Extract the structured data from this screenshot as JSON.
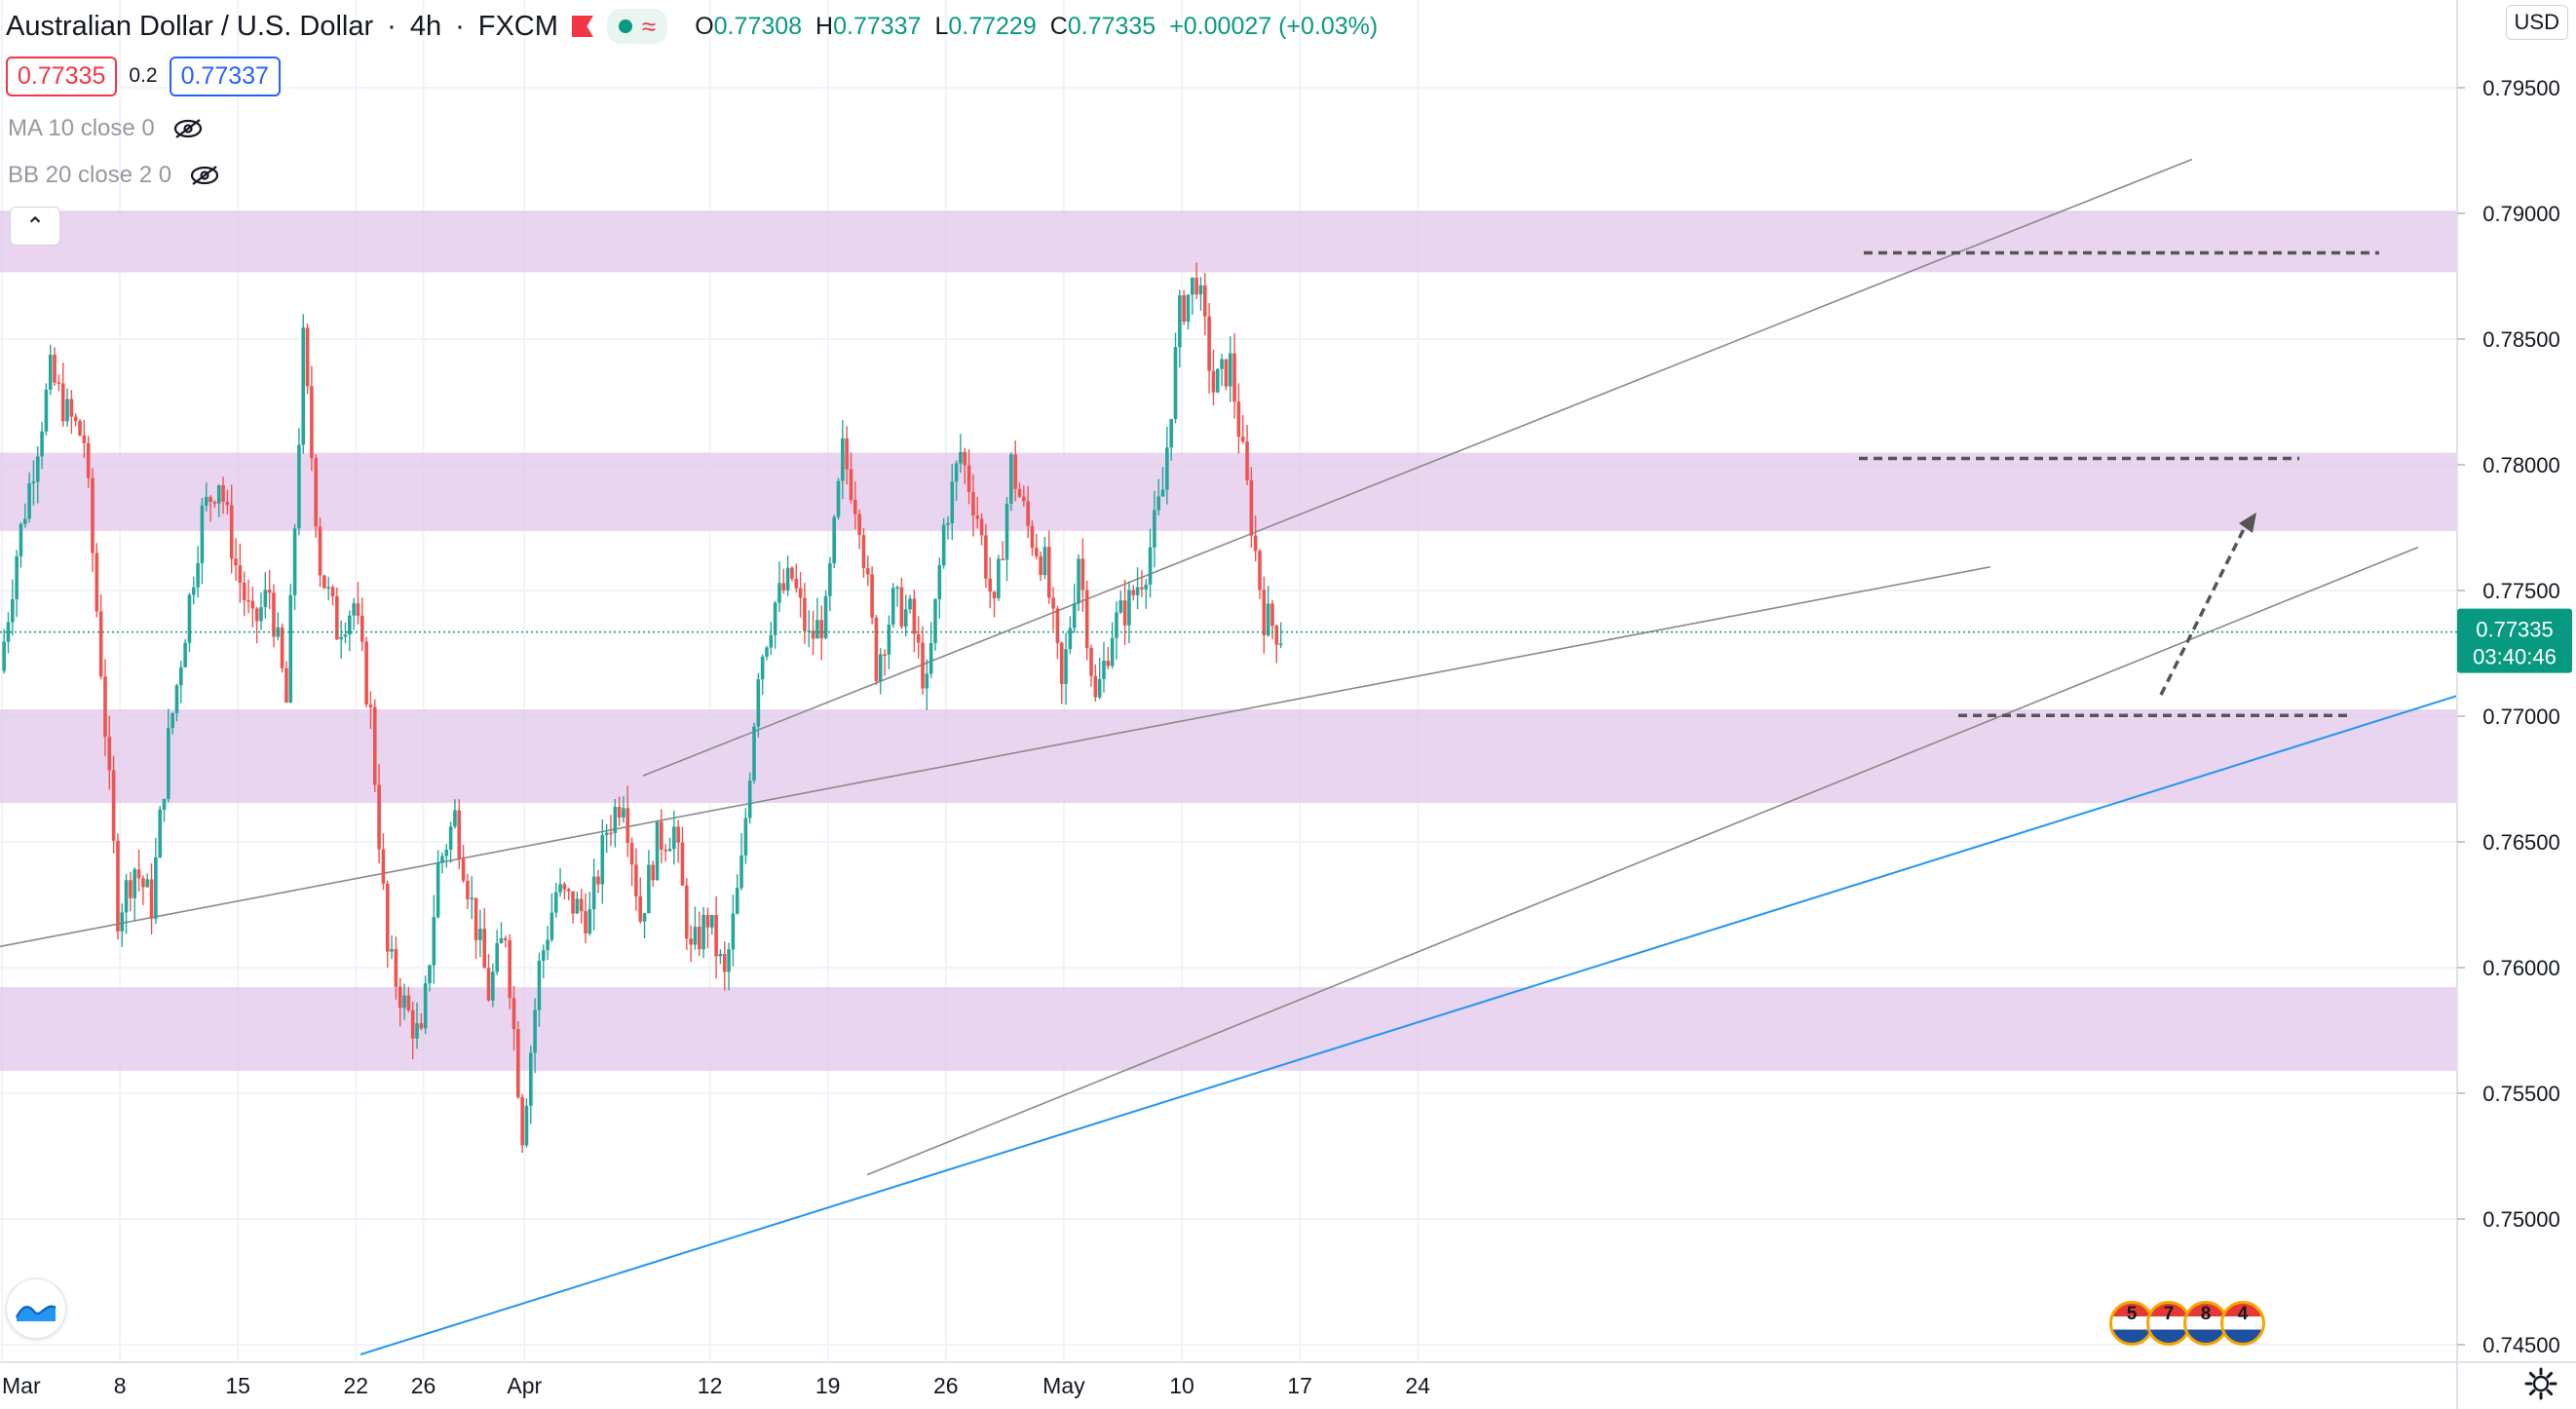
{
  "header": {
    "symbol": "Australian Dollar / U.S. Dollar",
    "interval": "4h",
    "exchange": "FXCM",
    "ohlc": {
      "open_label": "O",
      "open": "0.77308",
      "high_label": "H",
      "high": "0.77337",
      "low_label": "L",
      "low": "0.77229",
      "close_label": "C",
      "close": "0.77335",
      "change": "+0.00027 (+0.03%)"
    }
  },
  "trade": {
    "sell": "0.77335",
    "spread": "0.2",
    "buy": "0.77337"
  },
  "indicators": [
    {
      "label": "MA 10 close 0"
    },
    {
      "label": "BB 20 close 2 0"
    }
  ],
  "currency_button": "USD",
  "last_price": {
    "value": "0.77335",
    "countdown": "03:40:46"
  },
  "events": [
    "5",
    "7",
    "8",
    "4"
  ],
  "colors": {
    "up": "#26a69a",
    "down": "#ef5350",
    "zone": "#e1c7ea",
    "trendline": "#8a8a8a",
    "blue_trend": "#2196f3",
    "last_price": "#089981"
  },
  "chart_data": {
    "type": "candlestick",
    "title": "Australian Dollar / U.S. Dollar",
    "interval": "4h",
    "x_axis_ticks": [
      "Mar",
      "8",
      "15",
      "22",
      "26",
      "Apr",
      "12",
      "19",
      "26",
      "May",
      "10",
      "17",
      "24"
    ],
    "y_axis_ticks": [
      "0.79500",
      "0.79000",
      "0.78500",
      "0.78000",
      "0.77500",
      "0.77000",
      "0.76500",
      "0.76000",
      "0.75500",
      "0.75000",
      "0.74500"
    ],
    "y_range": [
      0.7445,
      0.7975
    ],
    "horizontal_zones": [
      {
        "from": 0.78766,
        "to": 0.79011
      },
      {
        "from": 0.77737,
        "to": 0.78048
      },
      {
        "from": 0.76655,
        "to": 0.77027
      },
      {
        "from": 0.7559,
        "to": 0.75922
      }
    ],
    "key_levels": [
      0.78843,
      0.78025,
      0.77003
    ],
    "last_price": 0.77335,
    "swing_path": [
      {
        "date": "Mar 1",
        "price": 0.7718
      },
      {
        "date": "Mar 2",
        "price": 0.7765
      },
      {
        "date": "Mar 4",
        "price": 0.7836
      },
      {
        "date": "Mar 5",
        "price": 0.782
      },
      {
        "date": "Mar 6",
        "price": 0.781
      },
      {
        "date": "Mar 7",
        "price": 0.772
      },
      {
        "date": "Mar 8",
        "price": 0.7622
      },
      {
        "date": "Mar 9",
        "price": 0.764
      },
      {
        "date": "Mar 10",
        "price": 0.7625
      },
      {
        "date": "Mar 11",
        "price": 0.769
      },
      {
        "date": "Mar 13",
        "price": 0.778
      },
      {
        "date": "Mar 14",
        "price": 0.7795
      },
      {
        "date": "Mar 15",
        "price": 0.776
      },
      {
        "date": "Mar 16",
        "price": 0.7735
      },
      {
        "date": "Mar 17",
        "price": 0.775
      },
      {
        "date": "Mar 18",
        "price": 0.7705
      },
      {
        "date": "Mar 19",
        "price": 0.7848
      },
      {
        "date": "Mar 20",
        "price": 0.776
      },
      {
        "date": "Mar 21",
        "price": 0.7735
      },
      {
        "date": "Mar 22",
        "price": 0.7745
      },
      {
        "date": "Mar 23",
        "price": 0.77
      },
      {
        "date": "Mar 24",
        "price": 0.7605
      },
      {
        "date": "Mar 25",
        "price": 0.7585
      },
      {
        "date": "Mar 26",
        "price": 0.757
      },
      {
        "date": "Mar 27",
        "price": 0.764
      },
      {
        "date": "Mar 28",
        "price": 0.766
      },
      {
        "date": "Mar 30",
        "price": 0.759
      },
      {
        "date": "Mar 31",
        "price": 0.7615
      },
      {
        "date": "Apr 1",
        "price": 0.7535
      },
      {
        "date": "Apr 2",
        "price": 0.76
      },
      {
        "date": "Apr 3",
        "price": 0.763
      },
      {
        "date": "Apr 5",
        "price": 0.762
      },
      {
        "date": "Apr 6",
        "price": 0.7655
      },
      {
        "date": "Apr 7",
        "price": 0.767
      },
      {
        "date": "Apr 8",
        "price": 0.762
      },
      {
        "date": "Apr 9",
        "price": 0.765
      },
      {
        "date": "Apr 10",
        "price": 0.7655
      },
      {
        "date": "Apr 11",
        "price": 0.7605
      },
      {
        "date": "Apr 12",
        "price": 0.762
      },
      {
        "date": "Apr 13",
        "price": 0.7595
      },
      {
        "date": "Apr 14",
        "price": 0.764
      },
      {
        "date": "Apr 15",
        "price": 0.772
      },
      {
        "date": "Apr 16",
        "price": 0.7745
      },
      {
        "date": "Apr 17",
        "price": 0.7755
      },
      {
        "date": "Apr 18",
        "price": 0.773
      },
      {
        "date": "Apr 19",
        "price": 0.774
      },
      {
        "date": "Apr 20",
        "price": 0.7805
      },
      {
        "date": "Apr 21",
        "price": 0.778
      },
      {
        "date": "Apr 22",
        "price": 0.772
      },
      {
        "date": "Apr 23",
        "price": 0.7745
      },
      {
        "date": "Apr 24",
        "price": 0.774
      },
      {
        "date": "Apr 25",
        "price": 0.771
      },
      {
        "date": "Apr 26",
        "price": 0.7775
      },
      {
        "date": "Apr 27",
        "price": 0.7805
      },
      {
        "date": "Apr 28",
        "price": 0.778
      },
      {
        "date": "Apr 29",
        "price": 0.774
      },
      {
        "date": "Apr 30",
        "price": 0.78
      },
      {
        "date": "May 1",
        "price": 0.7775
      },
      {
        "date": "May 2",
        "price": 0.776
      },
      {
        "date": "May 3",
        "price": 0.771
      },
      {
        "date": "May 4",
        "price": 0.7765
      },
      {
        "date": "May 5",
        "price": 0.7705
      },
      {
        "date": "May 6",
        "price": 0.7735
      },
      {
        "date": "May 7",
        "price": 0.7745
      },
      {
        "date": "May 8",
        "price": 0.776
      },
      {
        "date": "May 9",
        "price": 0.779
      },
      {
        "date": "May 10",
        "price": 0.786
      },
      {
        "date": "May 11",
        "price": 0.7875
      },
      {
        "date": "May 12",
        "price": 0.783
      },
      {
        "date": "May 13",
        "price": 0.784
      },
      {
        "date": "May 14",
        "price": 0.779
      },
      {
        "date": "May 15",
        "price": 0.774
      },
      {
        "date": "May 16",
        "price": 0.7733
      }
    ]
  }
}
